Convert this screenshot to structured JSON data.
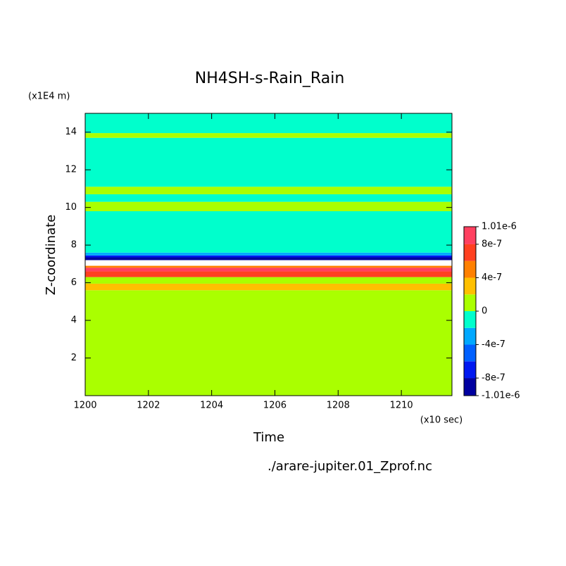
{
  "chart_data": {
    "type": "contour",
    "title": "NH4SH-s-Rain_Rain",
    "x_label": "Time",
    "y_label": "Z-coordinate",
    "x_unit": "(x10 sec)",
    "y_unit": "(x1E4 m)",
    "footer": "./arare-jupiter.01_Zprof.nc",
    "xlim": [
      1200,
      1211.6
    ],
    "xticks": [
      1200,
      1202,
      1204,
      1206,
      1208,
      1210
    ],
    "ylim": [
      0,
      15
    ],
    "yticks": [
      2,
      4,
      6,
      8,
      10,
      12,
      14
    ],
    "y_edges": [
      0,
      5.6,
      5.95,
      6.3,
      6.6,
      6.8,
      6.9,
      7.2,
      7.35,
      7.45,
      7.6,
      9.8,
      10.3,
      10.7,
      11.1,
      13.7,
      13.95,
      15
    ],
    "values": [
      1e-07,
      3e-07,
      1e-07,
      7e-07,
      9e-07,
      5e-07,
      null,
      -9e-07,
      -7e-07,
      -3e-07,
      -1e-07,
      1e-07,
      -1e-07,
      1e-07,
      -1e-07,
      1e-07,
      -1e-07
    ],
    "levels": [
      -1.01e-06,
      -8e-07,
      -6e-07,
      -4e-07,
      -2e-07,
      0,
      2e-07,
      4e-07,
      6e-07,
      8e-07,
      1.01e-06
    ],
    "colors": [
      "#0000a0",
      "#0018f0",
      "#0060ff",
      "#00a8ff",
      "#00ffcc",
      "#aaff00",
      "#ffc000",
      "#ff8000",
      "#ff4020",
      "#ff4060"
    ],
    "colorbar_ticks": [
      {
        "value": 1.01e-06,
        "label": "1.01e-6"
      },
      8e-07,
      4e-07,
      0,
      -4e-07,
      -8e-07,
      {
        "value": -1.01e-06,
        "label": "-1.01e-6"
      }
    ]
  }
}
